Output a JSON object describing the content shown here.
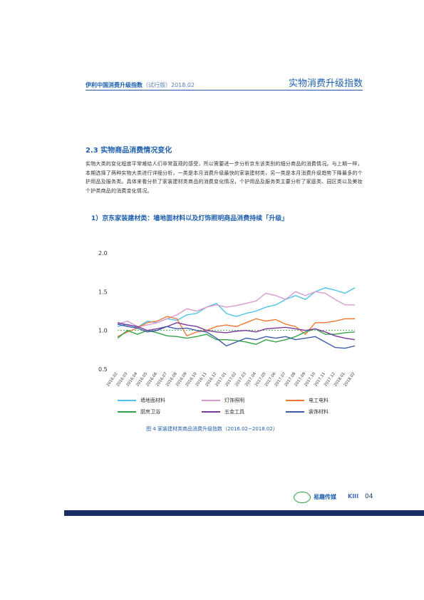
{
  "header": {
    "left_title": "伊利中国消费升级指数",
    "left_sub": "（试行版）2018.02",
    "right_title": "实物消费升级指数"
  },
  "section": {
    "title": "2.3   实物商品消费情况变化",
    "paragraph": "实物大类的变化程度平常难给人们非常直观的感受，所以需要进一步分析京东该类别的细分商品的消费情况。与上期一样，本期选择了两种实物大类进行详细分析，一类是本月消费升级最快的家装建材类，另一类是本月消费升级趋势下降最多的个护用品及服务类。具体来看分析了家装建材类商品的消费变化情况，个护用品及服务类主要分析了家庭类、园区类以及美妆个护类商品的消费变化情况。",
    "subtitle": "1）京东家装建材类：墙地面材料以及灯饰照明商品消费持续「升级」"
  },
  "figure": {
    "caption": "图 4  家装建材类商品消费升级指数（2016.02~2018.02）"
  },
  "footer": {
    "logo_left": "伊利",
    "logo_mid": "易趣传媒",
    "logo_right": "KIII",
    "page_number": "04"
  },
  "colors": {
    "brand_blue": "#1f5fae",
    "footer_bar": "#1c2d63"
  },
  "chart_data": {
    "type": "line",
    "x": [
      "2016.02",
      "2016.03",
      "2016.04",
      "2016.05",
      "2016.06",
      "2016.07",
      "2016.08",
      "2016.09",
      "2016.10",
      "2016.11",
      "2016.12",
      "2017.01",
      "2017.02",
      "2017.03",
      "2017.04",
      "2017.05",
      "2017.06",
      "2017.07",
      "2017.08",
      "2017.09",
      "2017.10",
      "2017.11",
      "2017.12",
      "2018.01",
      "2018.02"
    ],
    "ylim": [
      0.5,
      2.0
    ],
    "yticks": [
      "2.0",
      "1.5",
      "1.0",
      "0.5"
    ],
    "reference_line": 1.0,
    "series": [
      {
        "name": "墙地面材料",
        "color": "#4ec3e6",
        "values": [
          1.05,
          1.08,
          1.04,
          1.12,
          1.1,
          1.15,
          1.13,
          1.2,
          1.22,
          1.3,
          1.35,
          1.22,
          1.18,
          1.22,
          1.25,
          1.3,
          1.33,
          1.4,
          1.45,
          1.4,
          1.5,
          1.55,
          1.52,
          1.48,
          1.55
        ]
      },
      {
        "name": "灯饰照明",
        "color": "#d89ad0",
        "values": [
          1.08,
          1.12,
          1.05,
          1.07,
          1.1,
          1.15,
          1.2,
          1.28,
          1.25,
          1.3,
          1.33,
          1.3,
          1.32,
          1.35,
          1.38,
          1.48,
          1.45,
          1.4,
          1.5,
          1.45,
          1.5,
          1.48,
          1.4,
          1.33,
          1.33
        ]
      },
      {
        "name": "电工电料",
        "color": "#ec7a35",
        "values": [
          0.92,
          0.98,
          1.03,
          1.1,
          1.12,
          1.18,
          1.15,
          0.93,
          0.98,
          1.0,
          1.05,
          1.07,
          1.05,
          1.1,
          1.15,
          1.12,
          1.14,
          1.08,
          1.05,
          0.95,
          1.1,
          1.1,
          1.12,
          1.15,
          1.15
        ]
      },
      {
        "name": "厨房卫浴",
        "color": "#35a24a",
        "values": [
          0.9,
          1.0,
          0.95,
          1.0,
          0.97,
          0.93,
          0.92,
          0.9,
          0.92,
          0.95,
          0.88,
          0.88,
          0.87,
          0.85,
          0.82,
          0.88,
          0.85,
          0.88,
          0.92,
          0.98,
          1.02,
          0.95,
          0.95,
          0.97,
          0.98
        ]
      },
      {
        "name": "五金工具",
        "color": "#7a3a9a",
        "values": [
          1.1,
          1.07,
          1.05,
          1.0,
          1.02,
          1.05,
          1.1,
          1.07,
          1.05,
          1.0,
          0.98,
          0.97,
          0.99,
          1.0,
          0.98,
          1.02,
          1.03,
          1.04,
          1.02,
          1.0,
          1.02,
          0.98,
          0.93,
          0.9,
          0.88
        ]
      },
      {
        "name": "装饰材料",
        "color": "#3f5aa6",
        "values": [
          1.08,
          1.05,
          1.03,
          0.98,
          1.0,
          1.05,
          1.02,
          1.03,
          1.0,
          0.98,
          0.9,
          0.8,
          0.85,
          0.9,
          0.88,
          0.92,
          0.9,
          0.92,
          0.88,
          0.9,
          0.92,
          0.85,
          0.78,
          0.77,
          0.8
        ]
      }
    ]
  }
}
